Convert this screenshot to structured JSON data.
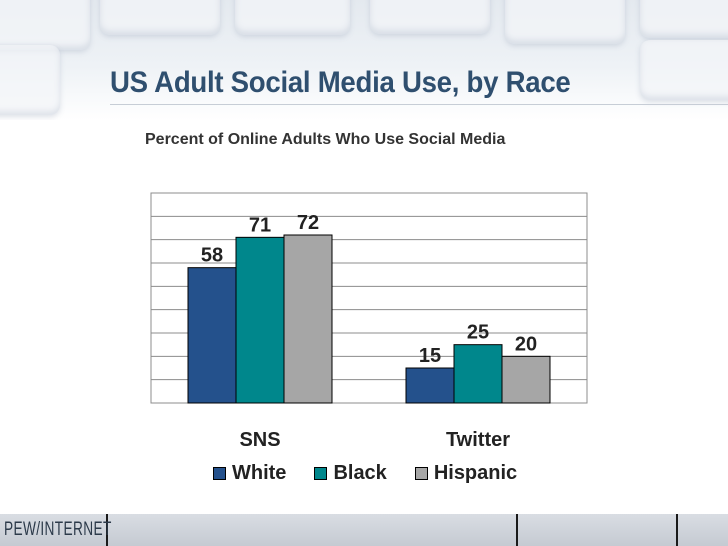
{
  "slide": {
    "title": "US Adult Social Media Use, by Race",
    "footer_logo": "PEW/INTERNET"
  },
  "colors": {
    "title": "#2f4f6f",
    "white_series": "#24518c",
    "black_series": "#00878c",
    "hispanic_series": "#a6a6a6",
    "gridline": "#8c8c8c"
  },
  "chart_data": {
    "type": "bar",
    "title": "Percent of Online Adults Who Use Social Media",
    "categories": [
      "SNS",
      "Twitter"
    ],
    "series": [
      {
        "name": "White",
        "values": [
          58,
          15
        ],
        "color": "#24518c"
      },
      {
        "name": "Black",
        "values": [
          71,
          25
        ],
        "color": "#00878c"
      },
      {
        "name": "Hispanic",
        "values": [
          72,
          20
        ],
        "color": "#a6a6a6"
      }
    ],
    "ylim": [
      0,
      90
    ],
    "y_gridline_step": 10,
    "grid": true,
    "data_labels": true,
    "legend_position": "bottom"
  }
}
